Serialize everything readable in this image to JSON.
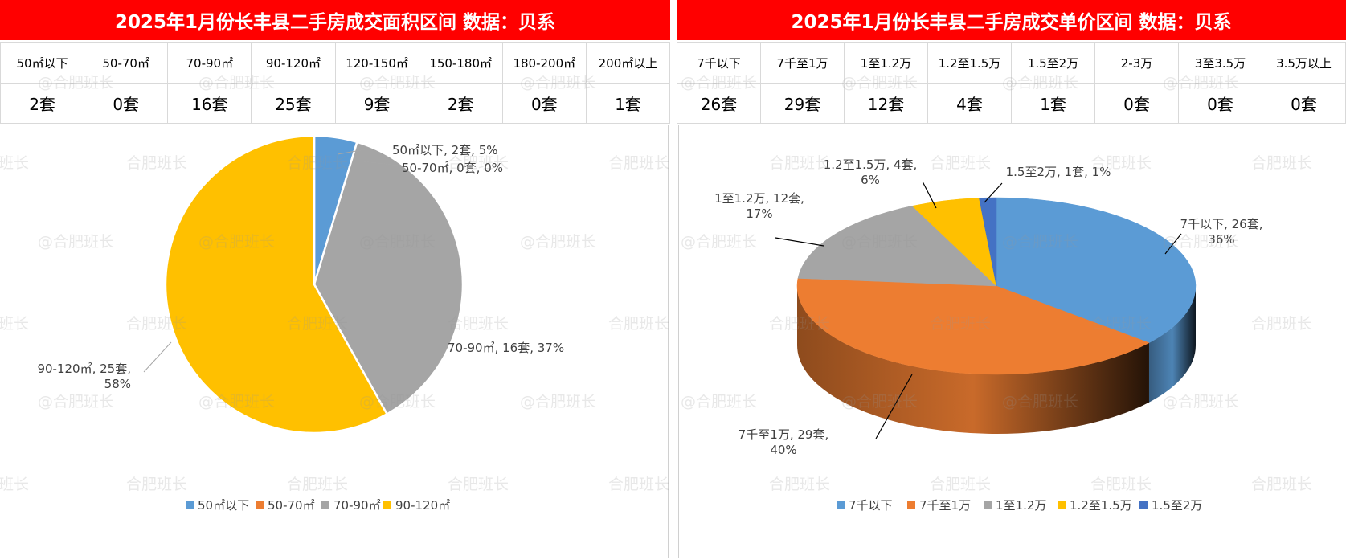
{
  "watermark": {
    "text_main": "合肥班长",
    "text_at": "@合肥班长"
  },
  "left": {
    "title": "2025年1月份长丰县二手房成交面积区间 数据：贝系",
    "headers": [
      "50㎡以下",
      "50-70㎡",
      "70-90㎡",
      "90-120㎡",
      "120-150㎡",
      "150-180㎡",
      "180-200㎡",
      "200㎡以上"
    ],
    "values": [
      "2套",
      "0套",
      "16套",
      "25套",
      "9套",
      "2套",
      "0套",
      "1套"
    ]
  },
  "right": {
    "title": "2025年1月份长丰县二手房成交单价区间 数据：贝系",
    "headers": [
      "7千以下",
      "7千至1万",
      "1至1.2万",
      "1.2至1.5万",
      "1.5至2万",
      "2-3万",
      "3至3.5万",
      "3.5万以上"
    ],
    "values": [
      "26套",
      "29套",
      "12套",
      "4套",
      "1套",
      "0套",
      "0套",
      "0套"
    ]
  },
  "chart_data": [
    {
      "type": "pie",
      "series": [
        {
          "category": "50㎡以下",
          "value": 2,
          "percent": 5,
          "color": "#5b9bd5",
          "label": "50㎡以下, 2套, 5%"
        },
        {
          "category": "50-70㎡",
          "value": 0,
          "percent": 0,
          "color": "#ed7d31",
          "label": "50-70㎡, 0套, 0%"
        },
        {
          "category": "70-90㎡",
          "value": 16,
          "percent": 37,
          "color": "#a5a5a5",
          "label": "70-90㎡, 16套, 37%"
        },
        {
          "category": "90-120㎡",
          "value": 25,
          "percent": 58,
          "color": "#ffc000",
          "label": "90-120㎡, 25套, 58%"
        }
      ],
      "legend_position": "bottom"
    },
    {
      "type": "pie",
      "style": "3d",
      "series": [
        {
          "category": "7千以下",
          "value": 26,
          "percent": 36,
          "color": "#5b9bd5",
          "label": "7千以下, 26套, 36%"
        },
        {
          "category": "7千至1万",
          "value": 29,
          "percent": 40,
          "color": "#ed7d31",
          "label": "7千至1万, 29套, 40%"
        },
        {
          "category": "1至1.2万",
          "value": 12,
          "percent": 17,
          "color": "#a5a5a5",
          "label": "1至1.2万, 12套, 17%"
        },
        {
          "category": "1.2至1.5万",
          "value": 4,
          "percent": 6,
          "color": "#ffc000",
          "label": "1.2至1.5万, 4套, 6%"
        },
        {
          "category": "1.5至2万",
          "value": 1,
          "percent": 1,
          "color": "#4472c4",
          "label": "1.5至2万, 1套, 1%"
        }
      ],
      "legend_position": "bottom"
    }
  ]
}
